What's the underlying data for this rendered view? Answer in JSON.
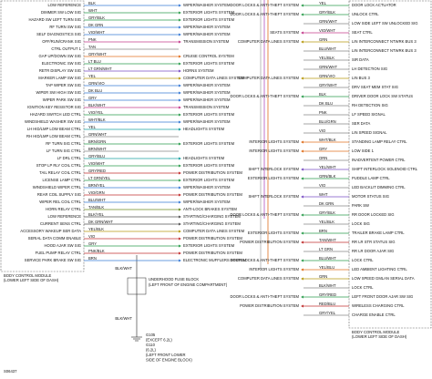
{
  "left_module": {
    "name": "BODY CONTROL MODULE",
    "location": "(LOWER LEFT SIDE OF DASH)",
    "rows": [
      {
        "pin": "LOW REFERENCE",
        "wire": "BLK",
        "system": "WIPER/WASHER SYSTEM"
      },
      {
        "pin": "DIMMER SW LOW SIG",
        "wire": "WHT",
        "system": "EXTERIOR LIGHTS SYSTEM"
      },
      {
        "pin": "HAZARD SW LEFT TURN SIG",
        "wire": "GRY/BLK",
        "system": "EXTERIOR LIGHTS SYSTEM"
      },
      {
        "pin": "RF TURN SW SIG",
        "wire": "DK GRN",
        "system": "WIPER/WASHER SYSTEM"
      },
      {
        "pin": "SELF DIAGNOSTICS SIG",
        "wire": "VIO/WHT",
        "system": "WIPER/WASHER SYSTEM"
      },
      {
        "pin": "OFF/RUN/CRANK SIG",
        "wire": "PNK",
        "system": "TRANSMISSION SYSTEM"
      },
      {
        "pin": "CTRL OUTPUT 1",
        "wire": "TAN"
      },
      {
        "pin": "GAP UP/DOWN SW SIG",
        "wire": "GRY/WHT",
        "system": "CRUISE CONTROL SYSTEM"
      },
      {
        "pin": "ELECTRONIC SW SIG",
        "wire": "LT BLU",
        "system": "EXTERIOR LIGHTS SYSTEM"
      },
      {
        "pin": "RETR DISPLAY SW SIG",
        "wire": "LT GRN/WHT",
        "system": "HORNS SYSTEM"
      },
      {
        "pin": "MARKER LAMP SW SIG",
        "wire": "YEL",
        "system": "COMPUTER DATA LINES SYSTEM"
      },
      {
        "pin": "TAP WIPER SW SIG",
        "wire": "GRN/VIO",
        "system": "WIPER/WASHER SYSTEM"
      },
      {
        "pin": "WIPER SW HIGH SW SIG",
        "wire": "DK BLU",
        "system": "WIPER/WASHER SYSTEM"
      },
      {
        "pin": "WIPER PARK SW SIG",
        "wire": "GRY",
        "system": "WIPER/WASHER SYSTEM"
      },
      {
        "pin": "IGNITION KEY RESISTOR SIG",
        "wire": "BLK/WHT",
        "system": "TRANSMISSION SYSTEM"
      },
      {
        "pin": "HAZARD SWITCH LED CTRL",
        "wire": "VIO/YEL",
        "system": "EXTERIOR LIGHTS SYSTEM"
      },
      {
        "pin": "WINDSHIELD WASHER SW SIG",
        "wire": "WHT/BLK",
        "system": "WIPER/WASHER SYSTEM"
      },
      {
        "pin": "LH HID/LMP LOW BEAM CTRL",
        "wire": "YEL",
        "system": "HEADLIGHTS SYSTEM"
      },
      {
        "pin": "RH HID/LMP LOW BEAM CTRL",
        "wire": "GRN/WHT"
      },
      {
        "pin": "RF TURN SIG CTRL",
        "wire": "BRN/GRN",
        "system": "EXTERIOR LIGHTS SYSTEM"
      },
      {
        "pin": "LF TURN SIG CTRL",
        "wire": "BRN/WHT"
      },
      {
        "pin": "LF DRL CTRL",
        "wire": "GRY/BLU",
        "system": "HEADLIGHTS SYSTEM"
      },
      {
        "pin": "STOP LP RLY COIL CTRL",
        "wire": "VIO/WHT",
        "system": "EXTERIOR LIGHTS SYSTEM"
      },
      {
        "pin": "TAIL RELAY COIL CTRL",
        "wire": "GRY/RED",
        "system": "POWER DISTRIBUTION SYSTEM"
      },
      {
        "pin": "LICENSE LAMP CTRL",
        "wire": "LT GRN/YEL",
        "system": "EXTERIOR LIGHTS SYSTEM"
      },
      {
        "pin": "WINDSHIELD WIPER CTRL",
        "wire": "BRN/YEL",
        "system": "WIPER/WASHER SYSTEM"
      },
      {
        "pin": "REAR COIL SUPPLY SIG",
        "wire": "VIO/GRN",
        "system": "POWER DISTRIBUTION SYSTEM"
      },
      {
        "pin": "WIPER REL COIL CTRL",
        "wire": "BLU/WHT",
        "system": "WIPER/WASHER SYSTEM"
      },
      {
        "pin": "HORN RELAY CTRL",
        "wire": "TAN/BLK",
        "system": "ANTI-LOCK BRAKES SYSTEM"
      },
      {
        "pin": "LOW REFERENCE",
        "wire": "BLK/YEL",
        "system": "STARTING/CHARGING SYSTEM"
      },
      {
        "pin": "CURRENT SENS CTRL",
        "wire": "DK GRN/WHT",
        "system": "STARTING/CHARGING SYSTEM"
      },
      {
        "pin": "ACCESSORY WAKEUP SER DATA",
        "wire": "YEL/BLK",
        "system": "COMPUTER DATA LINES SYSTEM"
      },
      {
        "pin": "SERIAL DATA COMM ENABLE",
        "wire": "VIO",
        "system": "POWER DISTRIBUTION SYSTEM"
      },
      {
        "pin": "HOOD AJAR SW SIG",
        "wire": "GRY",
        "system": "EXTERIOR LIGHTS SYSTEM"
      },
      {
        "pin": "FUEL PUMP RELAY CTRL",
        "wire": "PNK/BLK",
        "system": "POWER DISTRIBUTION SYSTEM"
      },
      {
        "pin": "SERVICE PARK BRAKE SW SIG",
        "wire": "BRN",
        "system": "ELECTRONIC MUFFLERS SYSTEM"
      }
    ]
  },
  "right_module": {
    "name": "BODY CONTROL MODULE",
    "location": "(LOWER LEFT SIDE OF DASH)",
    "rows": [
      {
        "pin": "DOOR LOCK ACTUATOR",
        "wire": "YEL",
        "system": "DOOR LOCKS & ANTI-THEFT SYSTEM"
      },
      {
        "pin": "UNLOCK CTRL",
        "wire": "GRY/BLK",
        "system": "DOOR LOCKS & ANTI-THEFT SYSTEM"
      },
      {
        "pin": "LOW SIDE LEFT SW UNLOCKED SIG",
        "wire": "GRN/WHT"
      },
      {
        "pin": "SEAT CTRL",
        "wire": "VIO/WHT",
        "system": "SEATS SYSTEM"
      },
      {
        "pin": "LIN INTERCONNECT NTWRK BUS 3",
        "wire": "GRN",
        "system": "COMPUTER DATA LINES SYSTEM"
      },
      {
        "pin": "LIN INTERCONNECT NTWRK BUS 3",
        "wire": "BLU/WHT"
      },
      {
        "pin": "SIR DATA",
        "wire": "YEL/BLK"
      },
      {
        "pin": "LH DETECTION SIG",
        "wire": "GRN/WHT"
      },
      {
        "pin": "LIN BUS 3",
        "wire": "GRN/VIO",
        "system": "COMPUTER DATA LINES SYSTEM"
      },
      {
        "pin": "DRV SEAT MEM STAT SIG",
        "wire": "GRY/WHT"
      },
      {
        "pin": "DRIVER DOOR LOCK SW STATUS",
        "wire": "BLK",
        "system": "DOOR LOCKS & ANTI-THEFT SYSTEM"
      },
      {
        "pin": "RH DETECTION SIG",
        "wire": "DK BLU"
      },
      {
        "pin": "LF SPEED SIGNAL",
        "wire": "PNK"
      },
      {
        "pin": "SER DATA",
        "wire": "BLU/GRN"
      },
      {
        "pin": "LIN SPEED SIGNAL",
        "wire": "VIO"
      },
      {
        "pin": "STANDING LAMP RELAY CTRL",
        "wire": "WHT/BLK",
        "system": "INTERIOR LIGHTS SYSTEM"
      },
      {
        "pin": "LOW SIDE 1",
        "wire": "GRY",
        "system": "INTERIOR LIGHTS SYSTEM"
      },
      {
        "pin": "INADVERTENT POWER CTRL",
        "wire": "ORN"
      },
      {
        "pin": "SHIFT INTERLOCK SOLENOID CTRL",
        "wire": "YEL/WHT",
        "system": "SHIFT INTERLOCK SYSTEM"
      },
      {
        "pin": "PUDDLE LAMP CTRL",
        "wire": "GRN/BLK",
        "system": "EXTERIOR LIGHTS SYSTEM"
      },
      {
        "pin": "LED BACKLIT DIMMING CTRL",
        "wire": "VIO"
      },
      {
        "pin": "MOTOR STATUS SIG",
        "wire": "WHT",
        "system": "SHIFT INTERLOCK SYSTEM"
      },
      {
        "pin": "PARK SW",
        "wire": "DK GRN"
      },
      {
        "pin": "RR DOOR LOCKED SIG",
        "wire": "GRY/BLK",
        "system": "DOOR LOCKS & ANTI-THEFT SYSTEM"
      },
      {
        "pin": "LOCK SIG",
        "wire": "YEL/BLK"
      },
      {
        "pin": "TRAILER BRAKE LAMP CTRL",
        "wire": "BRN",
        "system": "EXTERIOR LIGHTS SYSTEM"
      },
      {
        "pin": "RR LR STR STATUS SIG",
        "wire": "TAN/WHT",
        "system": "POWER DISTRIBUTION SYSTEM"
      },
      {
        "pin": "RR LR DOOR AJAR SIG",
        "wire": "LT GRN"
      },
      {
        "pin": "LOCK CTRL",
        "wire": "BLU/WHT",
        "system": "DOOR LOCKS & ANTI-THEFT SYSTEM"
      },
      {
        "pin": "LED AMBIENT LIGHTING CTRL",
        "wire": "YEL/BLU",
        "system": "INTERIOR LIGHTS SYSTEM"
      },
      {
        "pin": "LOW SPEED GMLAN SERIAL DATA",
        "wire": "GRN",
        "system": "COMPUTER DATA LINES SYSTEM"
      },
      {
        "pin": "LOCK CTRL",
        "wire": "BLK/WHT"
      },
      {
        "pin": "LEFT FRONT DOOR AJAR SW SIG",
        "wire": "GRY/RED",
        "system": "DOOR LOCKS & ANTI-THEFT SYSTEM"
      },
      {
        "pin": "WIRELESS CHARGING CTRL",
        "wire": "RED/BLU",
        "system": "POWER DISTRIBUTION SYSTEM"
      },
      {
        "pin": "CHARGE ENABLE CTRL",
        "wire": "GRY/YEL"
      }
    ]
  },
  "fuse_block": {
    "name": "UNDERHOOD FUSE BLOCK",
    "location": "(LEFT FRONT OF ENGINE COMPARTMENT)",
    "wire_in": "BLK/WHT",
    "wire_out": "BLK/WHT"
  },
  "ground": {
    "lines": [
      "G105",
      "(EXCEPT 6.2L)",
      "G110",
      "(6.2L)",
      "(LEFT FRONT LOWER",
      "SIDE OF ENGINE BLOCK)"
    ]
  },
  "footer": "S06437"
}
